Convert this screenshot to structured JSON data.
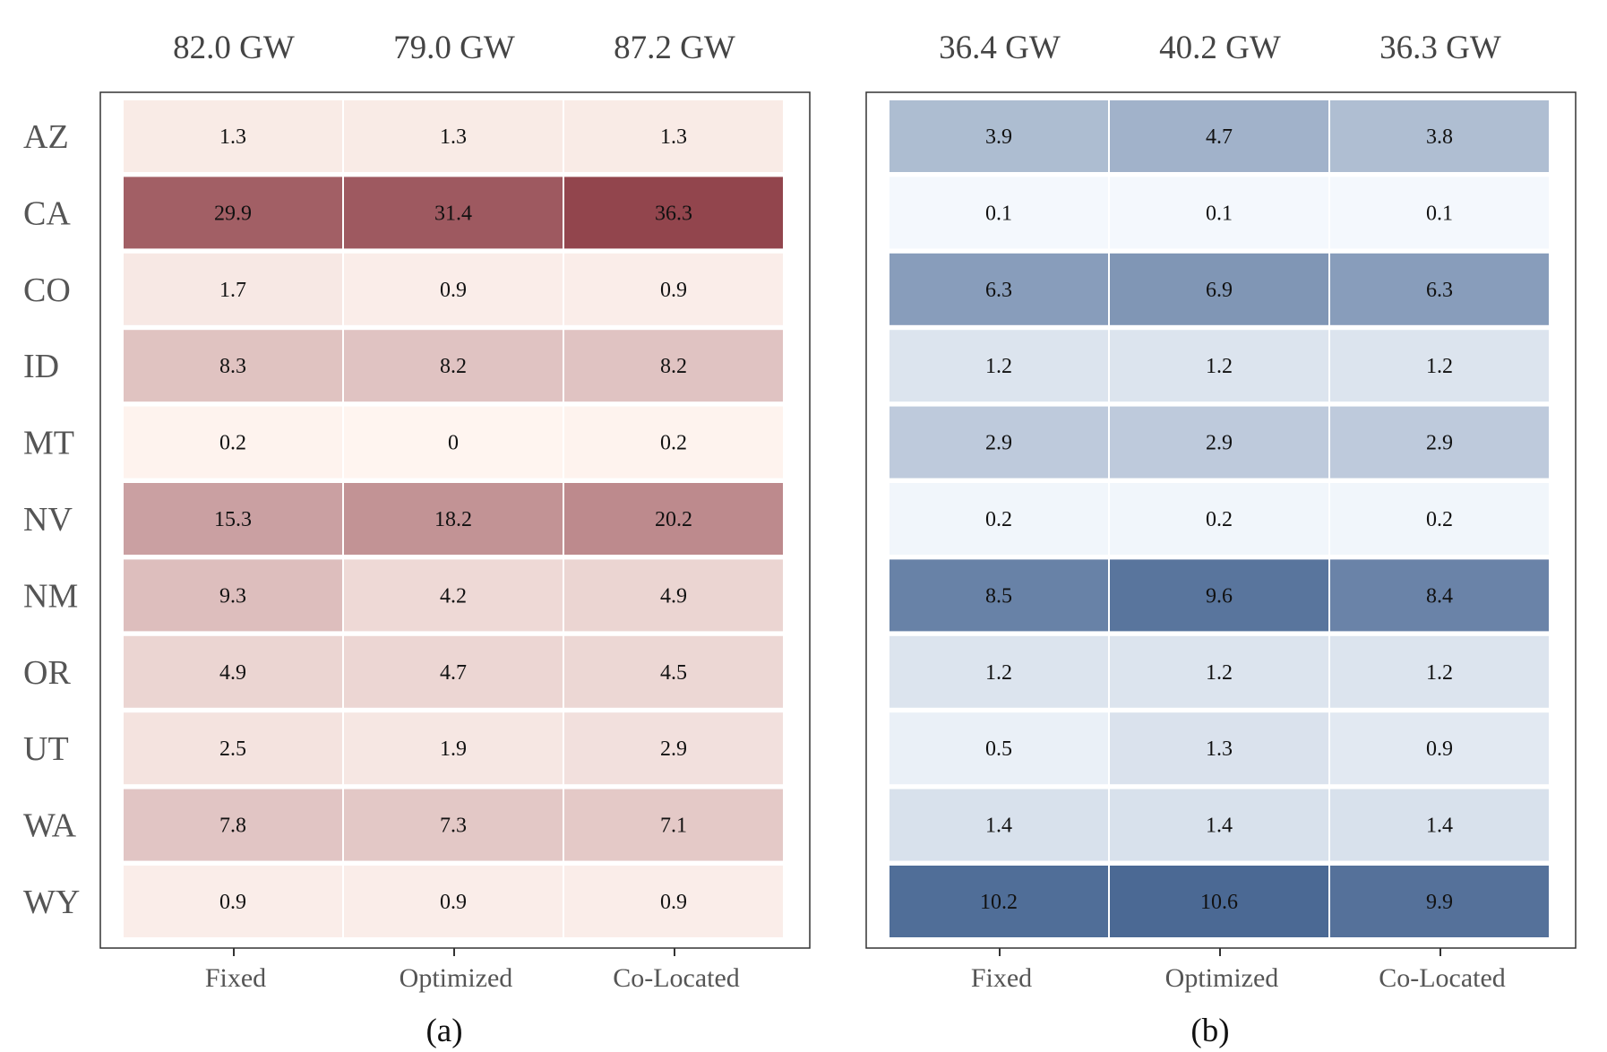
{
  "chart_data": [
    {
      "type": "heatmap",
      "panel": "(a)",
      "colormap": "reds",
      "color_low": "#fff5f0",
      "color_high": "#67000d",
      "totals": [
        "82.0 GW",
        "79.0 GW",
        "87.2 GW"
      ],
      "categories": [
        "Fixed",
        "Optimized",
        "Co-Located"
      ],
      "rows": [
        "AZ",
        "CA",
        "CO",
        "ID",
        "MT",
        "NV",
        "NM",
        "OR",
        "UT",
        "WA",
        "WY"
      ],
      "values": [
        [
          1.3,
          1.3,
          1.3
        ],
        [
          29.9,
          31.4,
          36.3
        ],
        [
          1.7,
          0.9,
          0.9
        ],
        [
          8.3,
          8.2,
          8.2
        ],
        [
          0.2,
          0,
          0.2
        ],
        [
          15.3,
          18.2,
          20.2
        ],
        [
          9.3,
          4.2,
          4.9
        ],
        [
          4.9,
          4.7,
          4.5
        ],
        [
          2.5,
          1.9,
          2.9
        ],
        [
          7.8,
          7.3,
          7.1
        ],
        [
          0.9,
          0.9,
          0.9
        ]
      ],
      "labels": [
        [
          "1.3",
          "1.3",
          "1.3"
        ],
        [
          "29.9",
          "31.4",
          "36.3"
        ],
        [
          "1.7",
          "0.9",
          "0.9"
        ],
        [
          "8.3",
          "8.2",
          "8.2"
        ],
        [
          "0.2",
          "0",
          "0.2"
        ],
        [
          "15.3",
          "18.2",
          "20.2"
        ],
        [
          "9.3",
          "4.2",
          "4.9"
        ],
        [
          "4.9",
          "4.7",
          "4.5"
        ],
        [
          "2.5",
          "1.9",
          "2.9"
        ],
        [
          "7.8",
          "7.3",
          "7.1"
        ],
        [
          "0.9",
          "0.9",
          "0.9"
        ]
      ],
      "vmax": 36.3
    },
    {
      "type": "heatmap",
      "panel": "(b)",
      "colormap": "blues",
      "color_low": "#f7fbff",
      "color_high": "#08306b",
      "totals": [
        "36.4 GW",
        "40.2 GW",
        "36.3 GW"
      ],
      "categories": [
        "Fixed",
        "Optimized",
        "Co-Located"
      ],
      "values": [
        [
          3.9,
          4.7,
          3.8
        ],
        [
          0.1,
          0.1,
          0.1
        ],
        [
          6.3,
          6.9,
          6.3
        ],
        [
          1.2,
          1.2,
          1.2
        ],
        [
          2.9,
          2.9,
          2.9
        ],
        [
          0.2,
          0.2,
          0.2
        ],
        [
          8.5,
          9.6,
          8.4
        ],
        [
          1.2,
          1.2,
          1.2
        ],
        [
          0.5,
          1.3,
          0.9
        ],
        [
          1.4,
          1.4,
          1.4
        ],
        [
          10.2,
          10.6,
          9.9
        ]
      ],
      "labels": [
        [
          "3.9",
          "4.7",
          "3.8"
        ],
        [
          "0.1",
          "0.1",
          "0.1"
        ],
        [
          "6.3",
          "6.9",
          "6.3"
        ],
        [
          "1.2",
          "1.2",
          "1.2"
        ],
        [
          "2.9",
          "2.9",
          "2.9"
        ],
        [
          "0.2",
          "0.2",
          "0.2"
        ],
        [
          "8.5",
          "9.6",
          "8.4"
        ],
        [
          "1.2",
          "1.2",
          "1.2"
        ],
        [
          "0.5",
          "1.3",
          "0.9"
        ],
        [
          "1.4",
          "1.4",
          "1.4"
        ],
        [
          "10.2",
          "10.6",
          "9.9"
        ]
      ],
      "vmax": 10.6
    }
  ]
}
